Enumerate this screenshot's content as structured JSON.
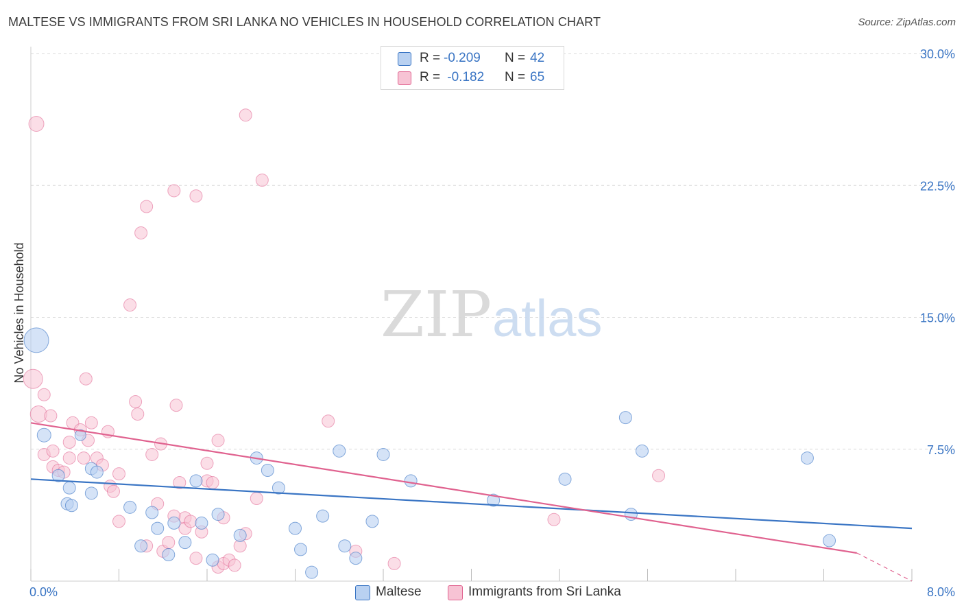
{
  "title": "MALTESE VS IMMIGRANTS FROM SRI LANKA NO VEHICLES IN HOUSEHOLD CORRELATION CHART",
  "source": "Source: ZipAtlas.com",
  "watermark": {
    "zip": "ZIP",
    "atlas": "atlas"
  },
  "legend": {
    "rows": [
      {
        "r_label": "R = ",
        "r_value": "-0.209",
        "n_label": "N = ",
        "n_value": "42"
      },
      {
        "r_label": "R = ",
        "r_value": " -0.182",
        "n_label": "N = ",
        "n_value": "65"
      }
    ]
  },
  "colors": {
    "maltese": "#3a75c4",
    "maltese_fill": "#b9d1f1",
    "srilanka": "#e0628f",
    "srilanka_fill": "#f7c3d4",
    "tick": "#3a75c4",
    "grid": "#d9d9d9"
  },
  "chart_data": {
    "type": "scatter",
    "xlabel": "",
    "ylabel": "No Vehicles in Household",
    "xlim": [
      0,
      8
    ],
    "ylim": [
      0,
      30
    ],
    "x_tick_labels": [
      "0.0%",
      "8.0%"
    ],
    "y_ticks": [
      7.5,
      15.0,
      22.5,
      30.0
    ],
    "y_tick_labels": [
      "7.5%",
      "15.0%",
      "22.5%",
      "30.0%"
    ],
    "grid": true,
    "series": [
      {
        "name": "Maltese",
        "trend": {
          "x0": 0.0,
          "y0": 5.8,
          "x1": 8.0,
          "y1": 3.0
        },
        "points": [
          {
            "x": 0.05,
            "y": 13.7,
            "s": 18
          },
          {
            "x": 0.12,
            "y": 8.3,
            "s": 10
          },
          {
            "x": 0.25,
            "y": 6.0,
            "s": 9
          },
          {
            "x": 0.35,
            "y": 5.3,
            "s": 9
          },
          {
            "x": 0.45,
            "y": 8.3,
            "s": 8
          },
          {
            "x": 0.55,
            "y": 6.4,
            "s": 9
          },
          {
            "x": 0.55,
            "y": 5.0,
            "s": 9
          },
          {
            "x": 0.6,
            "y": 6.2,
            "s": 9
          },
          {
            "x": 0.33,
            "y": 4.4,
            "s": 9
          },
          {
            "x": 0.37,
            "y": 4.3,
            "s": 9
          },
          {
            "x": 0.9,
            "y": 4.2,
            "s": 9
          },
          {
            "x": 1.0,
            "y": 2.0,
            "s": 9
          },
          {
            "x": 1.1,
            "y": 3.9,
            "s": 9
          },
          {
            "x": 1.15,
            "y": 3.0,
            "s": 9
          },
          {
            "x": 1.25,
            "y": 1.5,
            "s": 9
          },
          {
            "x": 1.3,
            "y": 3.3,
            "s": 9
          },
          {
            "x": 1.4,
            "y": 2.2,
            "s": 9
          },
          {
            "x": 1.5,
            "y": 5.7,
            "s": 9
          },
          {
            "x": 1.55,
            "y": 3.3,
            "s": 9
          },
          {
            "x": 1.65,
            "y": 1.2,
            "s": 9
          },
          {
            "x": 1.7,
            "y": 3.8,
            "s": 9
          },
          {
            "x": 1.9,
            "y": 2.6,
            "s": 9
          },
          {
            "x": 2.05,
            "y": 7.0,
            "s": 9
          },
          {
            "x": 2.15,
            "y": 6.3,
            "s": 9
          },
          {
            "x": 2.25,
            "y": 5.3,
            "s": 9
          },
          {
            "x": 2.4,
            "y": 3.0,
            "s": 9
          },
          {
            "x": 2.45,
            "y": 1.8,
            "s": 9
          },
          {
            "x": 2.55,
            "y": 0.5,
            "s": 9
          },
          {
            "x": 2.65,
            "y": 3.7,
            "s": 9
          },
          {
            "x": 2.8,
            "y": 7.4,
            "s": 9
          },
          {
            "x": 2.85,
            "y": 2.0,
            "s": 9
          },
          {
            "x": 2.95,
            "y": 1.3,
            "s": 9
          },
          {
            "x": 3.1,
            "y": 3.4,
            "s": 9
          },
          {
            "x": 3.2,
            "y": 7.2,
            "s": 9
          },
          {
            "x": 3.45,
            "y": 5.7,
            "s": 9
          },
          {
            "x": 4.2,
            "y": 4.6,
            "s": 9
          },
          {
            "x": 4.85,
            "y": 5.8,
            "s": 9
          },
          {
            "x": 5.4,
            "y": 9.3,
            "s": 9
          },
          {
            "x": 5.45,
            "y": 3.8,
            "s": 9
          },
          {
            "x": 5.55,
            "y": 7.4,
            "s": 9
          },
          {
            "x": 7.05,
            "y": 7.0,
            "s": 9
          },
          {
            "x": 7.25,
            "y": 2.3,
            "s": 9
          }
        ]
      },
      {
        "name": "Immigrants from Sri Lanka",
        "trend": {
          "x0": 0.0,
          "y0": 9.0,
          "x1": 7.5,
          "y1": 1.6,
          "dash_x1": 8.0,
          "dash_y1": 0.0
        },
        "points": [
          {
            "x": 0.05,
            "y": 26.0,
            "s": 11
          },
          {
            "x": 0.02,
            "y": 11.5,
            "s": 14
          },
          {
            "x": 0.07,
            "y": 9.5,
            "s": 12
          },
          {
            "x": 0.12,
            "y": 10.6,
            "s": 9
          },
          {
            "x": 0.18,
            "y": 9.4,
            "s": 9
          },
          {
            "x": 0.12,
            "y": 7.2,
            "s": 9
          },
          {
            "x": 0.2,
            "y": 7.4,
            "s": 9
          },
          {
            "x": 0.2,
            "y": 6.5,
            "s": 9
          },
          {
            "x": 0.25,
            "y": 6.3,
            "s": 9
          },
          {
            "x": 0.3,
            "y": 6.2,
            "s": 9
          },
          {
            "x": 0.35,
            "y": 7.9,
            "s": 9
          },
          {
            "x": 0.35,
            "y": 7.0,
            "s": 9
          },
          {
            "x": 0.38,
            "y": 9.0,
            "s": 9
          },
          {
            "x": 0.45,
            "y": 8.6,
            "s": 9
          },
          {
            "x": 0.48,
            "y": 7.0,
            "s": 9
          },
          {
            "x": 0.5,
            "y": 11.5,
            "s": 9
          },
          {
            "x": 0.52,
            "y": 8.0,
            "s": 9
          },
          {
            "x": 0.55,
            "y": 9.0,
            "s": 9
          },
          {
            "x": 0.6,
            "y": 7.0,
            "s": 9
          },
          {
            "x": 0.65,
            "y": 6.6,
            "s": 9
          },
          {
            "x": 0.7,
            "y": 8.5,
            "s": 9
          },
          {
            "x": 0.72,
            "y": 5.4,
            "s": 9
          },
          {
            "x": 0.75,
            "y": 5.1,
            "s": 9
          },
          {
            "x": 0.8,
            "y": 6.1,
            "s": 9
          },
          {
            "x": 0.8,
            "y": 3.4,
            "s": 9
          },
          {
            "x": 0.95,
            "y": 10.2,
            "s": 9
          },
          {
            "x": 0.97,
            "y": 9.5,
            "s": 9
          },
          {
            "x": 0.9,
            "y": 15.7,
            "s": 9
          },
          {
            "x": 1.0,
            "y": 19.8,
            "s": 9
          },
          {
            "x": 1.05,
            "y": 21.3,
            "s": 9
          },
          {
            "x": 1.05,
            "y": 2.0,
            "s": 9
          },
          {
            "x": 1.1,
            "y": 7.2,
            "s": 9
          },
          {
            "x": 1.15,
            "y": 4.4,
            "s": 9
          },
          {
            "x": 1.18,
            "y": 7.8,
            "s": 9
          },
          {
            "x": 1.2,
            "y": 1.7,
            "s": 9
          },
          {
            "x": 1.25,
            "y": 2.2,
            "s": 9
          },
          {
            "x": 1.3,
            "y": 22.2,
            "s": 9
          },
          {
            "x": 1.32,
            "y": 10.0,
            "s": 9
          },
          {
            "x": 1.35,
            "y": 5.6,
            "s": 9
          },
          {
            "x": 1.4,
            "y": 3.6,
            "s": 9
          },
          {
            "x": 1.4,
            "y": 3.0,
            "s": 9
          },
          {
            "x": 1.45,
            "y": 3.4,
            "s": 9
          },
          {
            "x": 1.5,
            "y": 21.9,
            "s": 9
          },
          {
            "x": 1.5,
            "y": 1.3,
            "s": 9
          },
          {
            "x": 1.55,
            "y": 2.8,
            "s": 9
          },
          {
            "x": 1.6,
            "y": 5.7,
            "s": 9
          },
          {
            "x": 1.6,
            "y": 6.7,
            "s": 9
          },
          {
            "x": 1.65,
            "y": 5.6,
            "s": 9
          },
          {
            "x": 1.7,
            "y": 8.0,
            "s": 9
          },
          {
            "x": 1.7,
            "y": 0.8,
            "s": 9
          },
          {
            "x": 1.75,
            "y": 3.6,
            "s": 9
          },
          {
            "x": 1.75,
            "y": 1.0,
            "s": 9
          },
          {
            "x": 1.8,
            "y": 1.2,
            "s": 9
          },
          {
            "x": 1.85,
            "y": 0.9,
            "s": 9
          },
          {
            "x": 1.9,
            "y": 2.0,
            "s": 9
          },
          {
            "x": 1.95,
            "y": 2.7,
            "s": 9
          },
          {
            "x": 1.95,
            "y": 26.5,
            "s": 9
          },
          {
            "x": 2.05,
            "y": 4.7,
            "s": 9
          },
          {
            "x": 2.1,
            "y": 22.8,
            "s": 9
          },
          {
            "x": 2.7,
            "y": 9.1,
            "s": 9
          },
          {
            "x": 2.95,
            "y": 1.7,
            "s": 9
          },
          {
            "x": 3.3,
            "y": 1.0,
            "s": 9
          },
          {
            "x": 4.75,
            "y": 3.5,
            "s": 9
          },
          {
            "x": 5.7,
            "y": 6.0,
            "s": 9
          },
          {
            "x": 1.3,
            "y": 3.7,
            "s": 9
          }
        ]
      }
    ]
  },
  "bottom_legend": [
    "Maltese",
    "Immigrants from Sri Lanka"
  ]
}
